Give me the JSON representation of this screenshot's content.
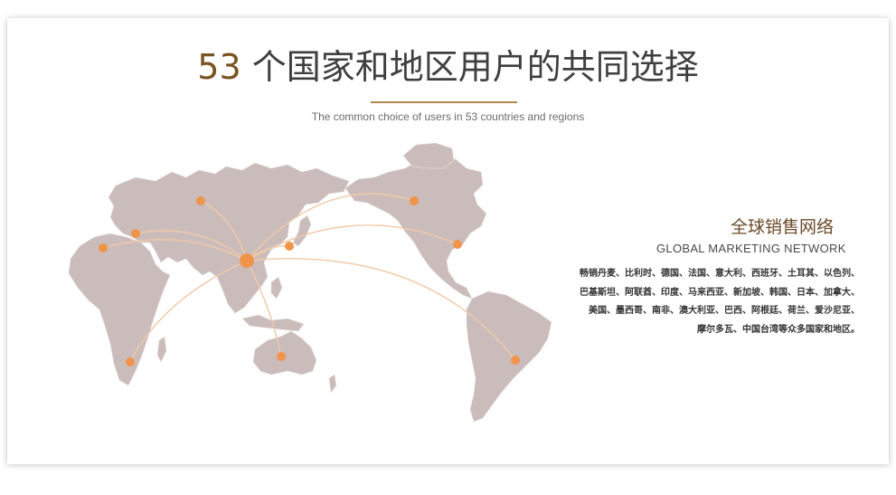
{
  "header": {
    "count": "53",
    "title_rest": " 个国家和地区用户的共同选择",
    "subtitle": "The common choice of users in 53 countries and regions"
  },
  "network": {
    "title_cn": "全球销售网络",
    "title_en": "GLOBAL MARKETING NETWORK",
    "country_lines": [
      "畅销丹麦、比利时、德国、法国、意大利、西班牙、土耳其、以色列、",
      "巴基斯坦、阿联酋、印度、马来西亚、新加坡、韩国、日本、加拿大、",
      "美国、墨西哥、南非、澳大利亚、巴西、阿根廷、荷兰、爱沙尼亚、",
      "摩尔多瓦、中国台湾等众多国家和地区。"
    ]
  },
  "colors": {
    "accent": "#7a5320",
    "divider": "#b08850",
    "land": "#cbbcbc",
    "route": "#f0c9a6",
    "dot": "#f0944a"
  }
}
